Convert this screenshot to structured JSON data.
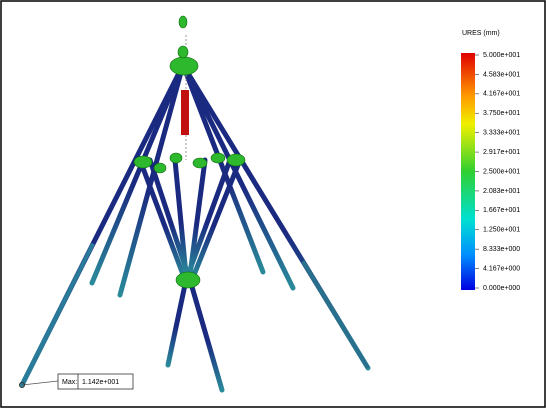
{
  "legend": {
    "title": "URES (mm)",
    "ticks": [
      "5.000e+001",
      "4.583e+001",
      "4.167e+001",
      "3.750e+001",
      "3.333e+001",
      "2.917e+001",
      "2.500e+001",
      "2.083e+001",
      "1.667e+001",
      "1.250e+001",
      "8.333e+000",
      "4.167e+000",
      "0.000e+000"
    ]
  },
  "probe": {
    "label": "Max:",
    "value": "1.142e+001"
  }
}
